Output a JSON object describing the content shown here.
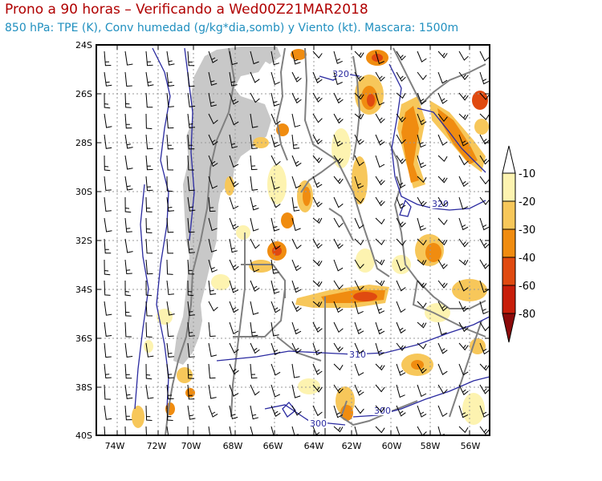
{
  "header": {
    "title": "Prono a 90 horas – Verificando a Wed00Z21MAR2018",
    "subtitle": "850 hPa: TPE (K), Conv humedad (g/kg*dia,somb) y Viento (kt). Mascara: 1500m"
  },
  "axes": {
    "lat_labels": [
      "24S",
      "26S",
      "28S",
      "30S",
      "32S",
      "34S",
      "36S",
      "38S",
      "40S"
    ],
    "lon_labels": [
      "74W",
      "72W",
      "70W",
      "68W",
      "66W",
      "64W",
      "62W",
      "60W",
      "58W",
      "56W"
    ]
  },
  "legend": {
    "labels": [
      "-10",
      "-20",
      "-30",
      "-40",
      "-60",
      "-80"
    ],
    "colors": [
      "#ffffff",
      "#fdf3b0",
      "#f7c75a",
      "#f08c10",
      "#e04a10",
      "#c81e0a",
      "#8c0a0a"
    ]
  },
  "contours": {
    "labels": [
      "320",
      "320",
      "310",
      "300",
      "300"
    ]
  },
  "colors": {
    "mask": "#c8c8c8",
    "borders": "#808080",
    "tpe_contours": "#2a2aa0",
    "grid": "#9a9a9a"
  }
}
